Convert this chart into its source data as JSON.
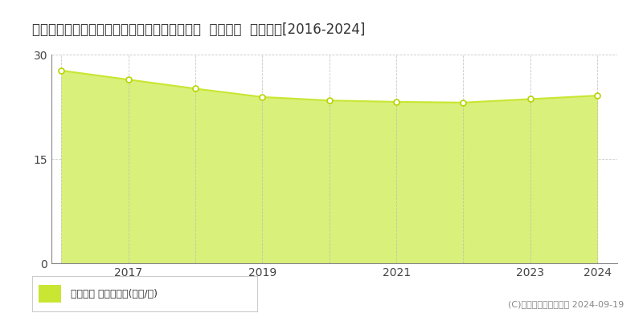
{
  "title": "兵庫県たつの市龍野町富永字小川原１５０番２  基準地価  地価推移[2016-2024]",
  "years": [
    2016,
    2017,
    2018,
    2019,
    2020,
    2021,
    2022,
    2023,
    2024
  ],
  "values": [
    27.7,
    26.4,
    25.1,
    23.9,
    23.4,
    23.2,
    23.1,
    23.6,
    24.1
  ],
  "ylim": [
    0,
    30
  ],
  "yticks": [
    0,
    15,
    30
  ],
  "xticks": [
    2017,
    2019,
    2021,
    2023,
    2024
  ],
  "line_color": "#c8e632",
  "fill_color": "#d9f07a",
  "marker_facecolor": "#ffffff",
  "marker_edgecolor": "#b8d400",
  "grid_color": "#bbbbbb",
  "bg_color": "#ffffff",
  "legend_label": "基準地価 平均坪単価(万円/坪)",
  "legend_marker_color": "#c8e632",
  "copyright_text": "(C)土地価格ドットコム 2024-09-19",
  "title_fontsize": 12,
  "tick_fontsize": 10,
  "legend_fontsize": 9,
  "copyright_fontsize": 8
}
